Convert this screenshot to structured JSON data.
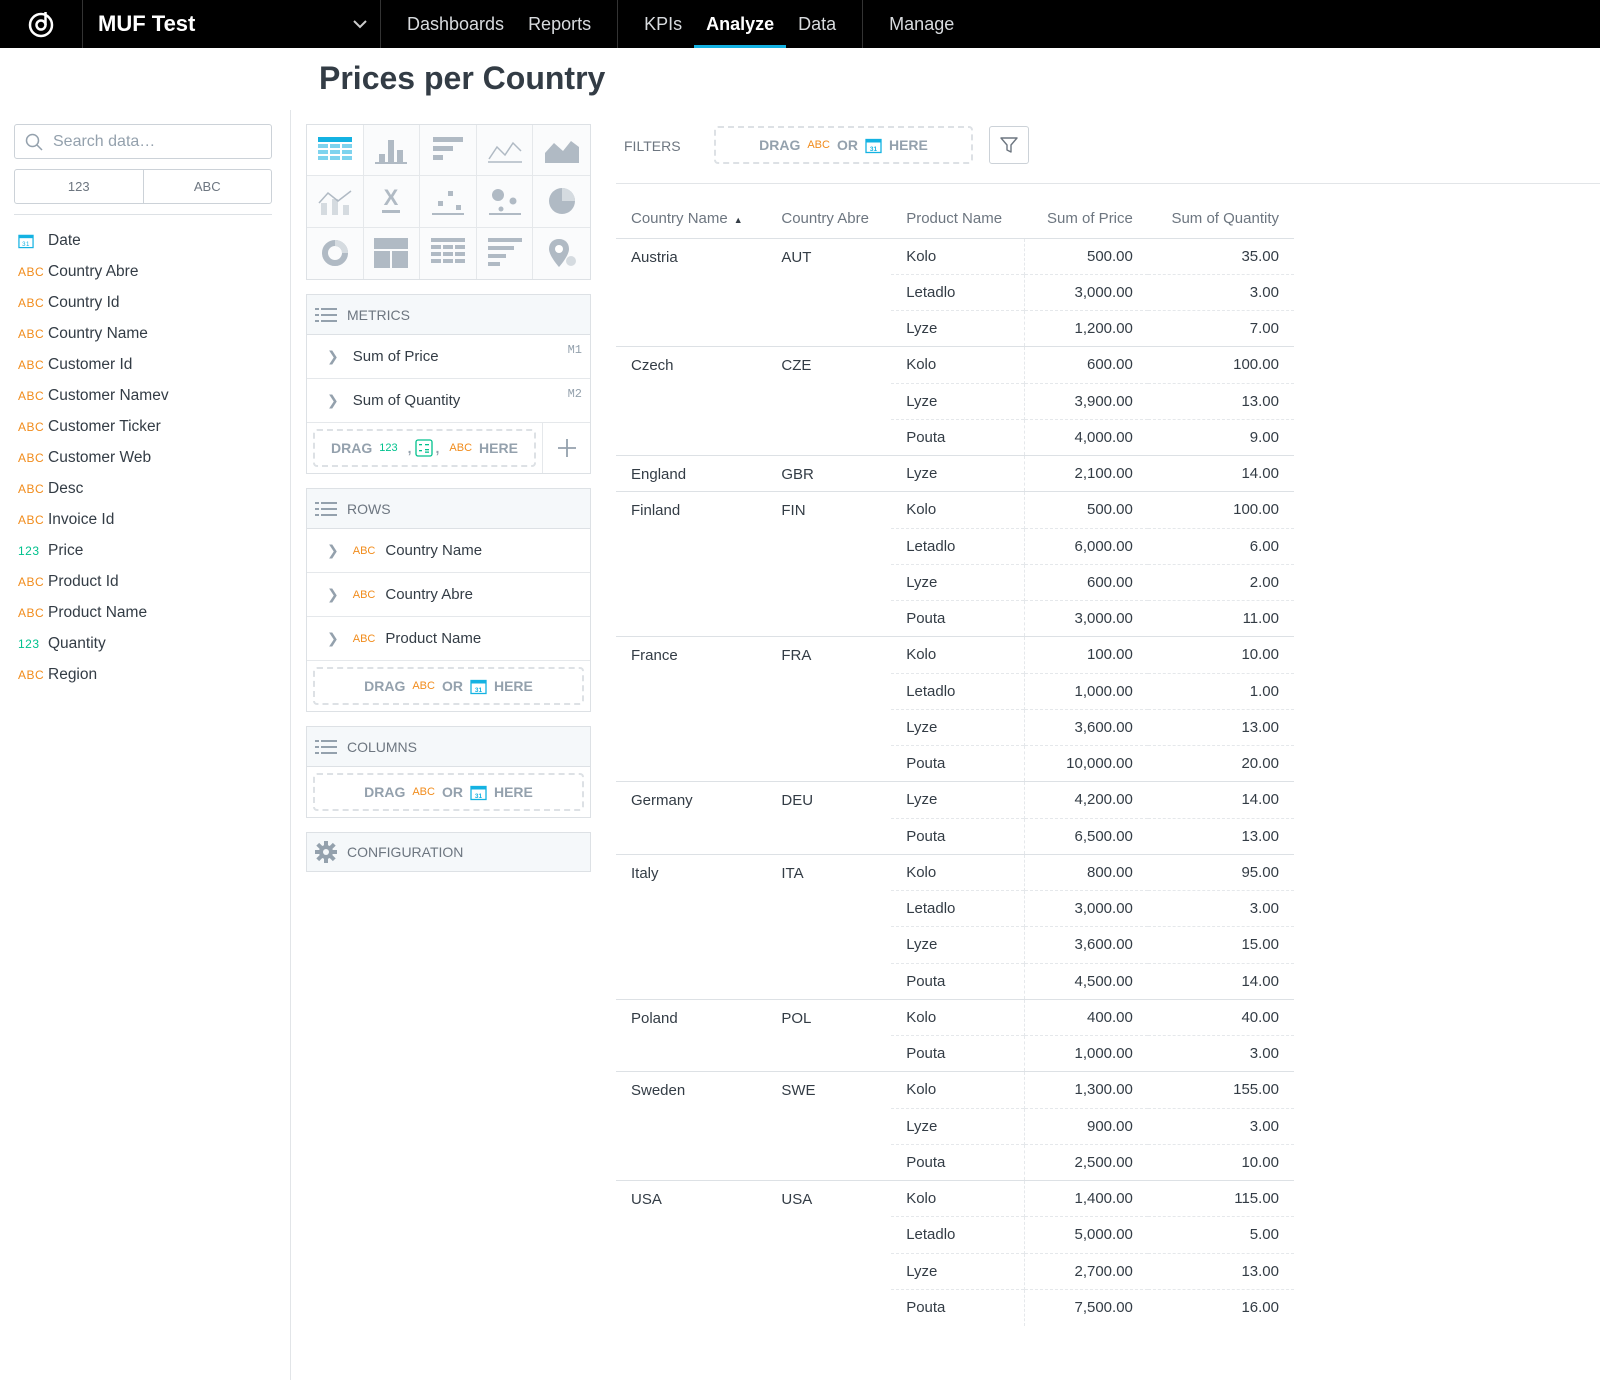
{
  "nav": {
    "workspace": "MUF Test",
    "groups": [
      [
        {
          "label": "Dashboards",
          "active": false
        },
        {
          "label": "Reports",
          "active": false
        }
      ],
      [
        {
          "label": "KPIs",
          "active": false
        },
        {
          "label": "Analyze",
          "active": true
        },
        {
          "label": "Data",
          "active": false
        }
      ],
      [
        {
          "label": "Manage",
          "active": false
        }
      ]
    ]
  },
  "page": {
    "title": "Prices per Country"
  },
  "catalog": {
    "search_placeholder": "Search data…",
    "type_filters": [
      "123",
      "ABC"
    ],
    "items": [
      {
        "type": "date",
        "label": "Date"
      },
      {
        "type": "ABC",
        "label": "Country Abre"
      },
      {
        "type": "ABC",
        "label": "Country Id"
      },
      {
        "type": "ABC",
        "label": "Country Name"
      },
      {
        "type": "ABC",
        "label": "Customer Id"
      },
      {
        "type": "ABC",
        "label": "Customer Namev"
      },
      {
        "type": "ABC",
        "label": "Customer Ticker"
      },
      {
        "type": "ABC",
        "label": "Customer Web"
      },
      {
        "type": "ABC",
        "label": "Desc"
      },
      {
        "type": "ABC",
        "label": "Invoice Id"
      },
      {
        "type": "123",
        "label": "Price"
      },
      {
        "type": "ABC",
        "label": "Product Id"
      },
      {
        "type": "ABC",
        "label": "Product Name"
      },
      {
        "type": "123",
        "label": "Quantity"
      },
      {
        "type": "ABC",
        "label": "Region"
      }
    ]
  },
  "buckets": {
    "metrics": {
      "title": "METRICS",
      "items": [
        {
          "label": "Sum of Price",
          "id": "M1"
        },
        {
          "label": "Sum of Quantity",
          "id": "M2"
        }
      ],
      "drop": {
        "drag": "DRAG",
        "num": "123",
        "sep": ",",
        "abc": "ABC",
        "here": "HERE"
      }
    },
    "rows": {
      "title": "ROWS",
      "items": [
        {
          "type": "ABC",
          "label": "Country Name"
        },
        {
          "type": "ABC",
          "label": "Country Abre"
        },
        {
          "type": "ABC",
          "label": "Product Name"
        }
      ],
      "drop": {
        "drag": "DRAG",
        "abc": "ABC",
        "or": "OR",
        "here": "HERE"
      }
    },
    "columns": {
      "title": "COLUMNS",
      "drop": {
        "drag": "DRAG",
        "abc": "ABC",
        "or": "OR",
        "here": "HERE"
      }
    },
    "configuration": {
      "title": "CONFIGURATION"
    }
  },
  "filters": {
    "label": "FILTERS",
    "drag": "DRAG",
    "abc": "ABC",
    "or": "OR",
    "here": "HERE"
  },
  "table": {
    "headers": [
      "Country Name",
      "Country Abre",
      "Product Name",
      "Sum of Price",
      "Sum of Quantity"
    ],
    "groups": [
      {
        "country": "Austria",
        "abbr": "AUT",
        "rows": [
          [
            "Kolo",
            "500.00",
            "35.00"
          ],
          [
            "Letadlo",
            "3,000.00",
            "3.00"
          ],
          [
            "Lyze",
            "1,200.00",
            "7.00"
          ]
        ]
      },
      {
        "country": "Czech",
        "abbr": "CZE",
        "rows": [
          [
            "Kolo",
            "600.00",
            "100.00"
          ],
          [
            "Lyze",
            "3,900.00",
            "13.00"
          ],
          [
            "Pouta",
            "4,000.00",
            "9.00"
          ]
        ]
      },
      {
        "country": "England",
        "abbr": "GBR",
        "rows": [
          [
            "Lyze",
            "2,100.00",
            "14.00"
          ]
        ]
      },
      {
        "country": "Finland",
        "abbr": "FIN",
        "rows": [
          [
            "Kolo",
            "500.00",
            "100.00"
          ],
          [
            "Letadlo",
            "6,000.00",
            "6.00"
          ],
          [
            "Lyze",
            "600.00",
            "2.00"
          ],
          [
            "Pouta",
            "3,000.00",
            "11.00"
          ]
        ]
      },
      {
        "country": "France",
        "abbr": "FRA",
        "rows": [
          [
            "Kolo",
            "100.00",
            "10.00"
          ],
          [
            "Letadlo",
            "1,000.00",
            "1.00"
          ],
          [
            "Lyze",
            "3,600.00",
            "13.00"
          ],
          [
            "Pouta",
            "10,000.00",
            "20.00"
          ]
        ]
      },
      {
        "country": "Germany",
        "abbr": "DEU",
        "rows": [
          [
            "Lyze",
            "4,200.00",
            "14.00"
          ],
          [
            "Pouta",
            "6,500.00",
            "13.00"
          ]
        ]
      },
      {
        "country": "Italy",
        "abbr": "ITA",
        "rows": [
          [
            "Kolo",
            "800.00",
            "95.00"
          ],
          [
            "Letadlo",
            "3,000.00",
            "3.00"
          ],
          [
            "Lyze",
            "3,600.00",
            "15.00"
          ],
          [
            "Pouta",
            "4,500.00",
            "14.00"
          ]
        ]
      },
      {
        "country": "Poland",
        "abbr": "POL",
        "rows": [
          [
            "Kolo",
            "400.00",
            "40.00"
          ],
          [
            "Pouta",
            "1,000.00",
            "3.00"
          ]
        ]
      },
      {
        "country": "Sweden",
        "abbr": "SWE",
        "rows": [
          [
            "Kolo",
            "1,300.00",
            "155.00"
          ],
          [
            "Lyze",
            "900.00",
            "3.00"
          ],
          [
            "Pouta",
            "2,500.00",
            "10.00"
          ]
        ]
      },
      {
        "country": "USA",
        "abbr": "USA",
        "rows": [
          [
            "Kolo",
            "1,400.00",
            "115.00"
          ],
          [
            "Letadlo",
            "5,000.00",
            "5.00"
          ],
          [
            "Lyze",
            "2,700.00",
            "13.00"
          ],
          [
            "Pouta",
            "7,500.00",
            "16.00"
          ]
        ]
      }
    ]
  }
}
